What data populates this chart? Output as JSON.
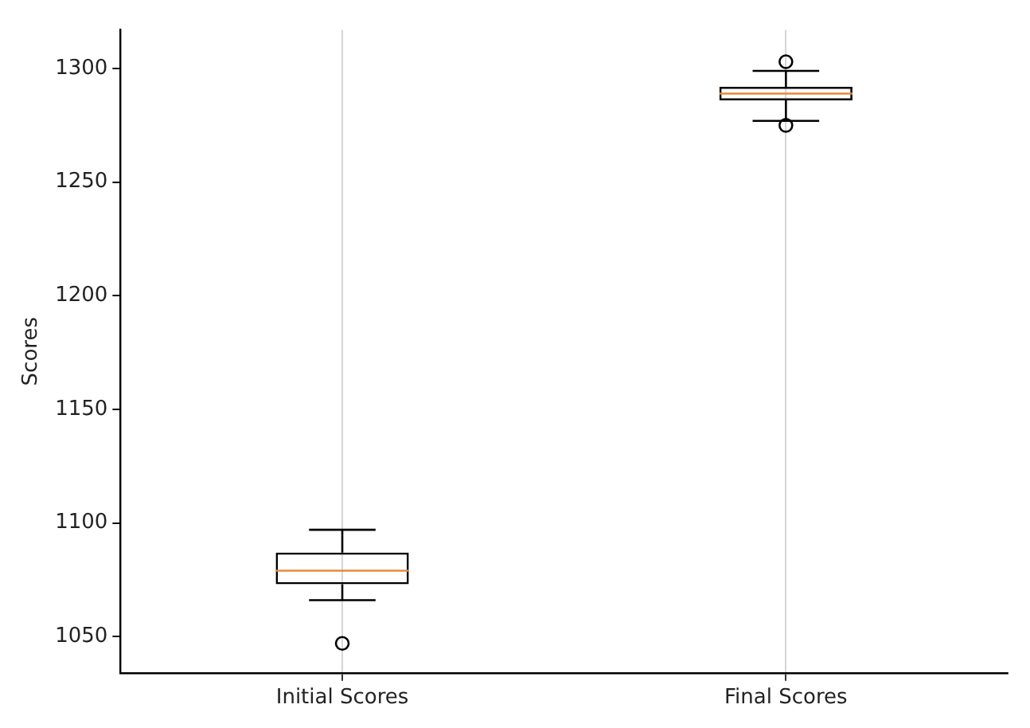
{
  "chart_data": {
    "type": "box",
    "ylabel": "Scores",
    "categories": [
      "Initial Scores",
      "Final Scores"
    ],
    "boxes": [
      {
        "low": 1066,
        "q1": 1073,
        "median": 1079,
        "q3": 1087,
        "high": 1097,
        "outliers": [
          1047
        ]
      },
      {
        "low": 1277,
        "q1": 1286,
        "median": 1289,
        "q3": 1292,
        "high": 1299,
        "outliers": [
          1303,
          1275
        ]
      }
    ],
    "ylim": [
      1034,
      1317
    ],
    "yticks": [
      1050,
      1100,
      1150,
      1200,
      1250,
      1300
    ],
    "grid": "x"
  }
}
